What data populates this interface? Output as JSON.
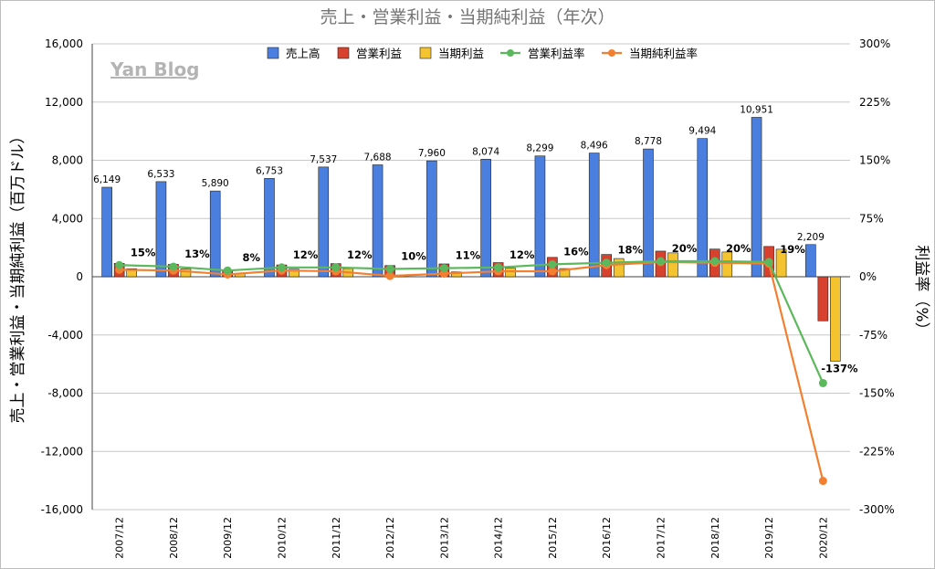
{
  "chart_data": {
    "type": "bar",
    "title": "売上・営業利益・当期純利益（年次）",
    "watermark": "Yan Blog",
    "ylabel": "売上・営業利益・当期純利益（百万ドル）",
    "y2label": "利益率（%）",
    "ylim": [
      -16000,
      16000
    ],
    "y2lim": [
      -300,
      300
    ],
    "yticks": [
      "16,000",
      "12,000",
      "8,000",
      "4,000",
      "0",
      "-4,000",
      "-8,000",
      "-12,000",
      "-16,000"
    ],
    "y2ticks": [
      "300%",
      "225%",
      "150%",
      "75%",
      "0%",
      "-75%",
      "-150%",
      "-225%",
      "-300%"
    ],
    "grid": true,
    "legend_position": "top",
    "categories": [
      "2007/12",
      "2008/12",
      "2009/12",
      "2010/12",
      "2011/12",
      "2012/12",
      "2013/12",
      "2014/12",
      "2015/12",
      "2016/12",
      "2017/12",
      "2018/12",
      "2019/12",
      "2020/12"
    ],
    "series": [
      {
        "name": "売上高",
        "kind": "bar",
        "axis": "left",
        "color": "#4a7fe0",
        "values": [
          6149,
          6533,
          5890,
          6753,
          7537,
          7688,
          7960,
          8074,
          8299,
          8496,
          8778,
          9494,
          10951,
          2209
        ],
        "labels": [
          "6,149",
          "6,533",
          "5,890",
          "6,753",
          "7,537",
          "7,688",
          "7,960",
          "8,074",
          "8,299",
          "8,496",
          "8,778",
          "9,494",
          "10,951",
          "2,209"
        ]
      },
      {
        "name": "営業利益",
        "kind": "bar",
        "axis": "left",
        "color": "#d9412f",
        "values": [
          920,
          850,
          470,
          810,
          900,
          770,
          880,
          970,
          1330,
          1530,
          1760,
          1900,
          2080,
          -3030
        ]
      },
      {
        "name": "当期利益",
        "kind": "bar",
        "axis": "left",
        "color": "#f4c430",
        "values": [
          550,
          540,
          210,
          520,
          560,
          70,
          330,
          590,
          560,
          1250,
          1640,
          1700,
          1890,
          -5800
        ]
      },
      {
        "name": "営業利益率",
        "kind": "line",
        "axis": "right",
        "color": "#5cb85c",
        "values": [
          15,
          13,
          8,
          12,
          12,
          10,
          11,
          12,
          16,
          18,
          20,
          20,
          19,
          -137
        ],
        "labels": [
          "15%",
          "13%",
          "8%",
          "12%",
          "12%",
          "10%",
          "11%",
          "12%",
          "16%",
          "18%",
          "20%",
          "20%",
          "19%",
          "-137%"
        ]
      },
      {
        "name": "当期純利益率",
        "kind": "line",
        "axis": "right",
        "color": "#f28030",
        "values": [
          9,
          8,
          3,
          8,
          7,
          1,
          4,
          7,
          7,
          15,
          19,
          18,
          17,
          -263
        ]
      }
    ]
  }
}
